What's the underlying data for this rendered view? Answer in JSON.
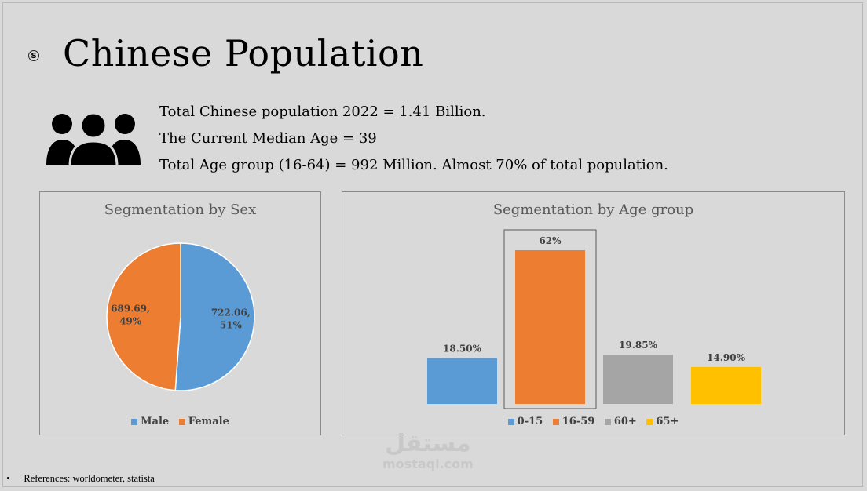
{
  "title": "Chinese Population",
  "stats": [
    "Total Chinese population 2022 = 1.41 Billion.",
    "The Current Median Age = 39",
    "Total Age group (16-64) = 992 Million. Almost 70% of total population."
  ],
  "references": "References: worldometer, statista",
  "watermark": {
    "arabic": "مستقل",
    "latin": "mostaql.com"
  },
  "colors": {
    "blue": "#5b9bd5",
    "orange": "#ed7d31",
    "gray": "#a5a5a5",
    "yellow": "#ffc000"
  },
  "chart_data": [
    {
      "type": "pie",
      "title": "Segmentation by Sex",
      "categories": [
        "Male",
        "Female"
      ],
      "values": [
        722.06,
        689.69
      ],
      "percent_labels": [
        "51%",
        "49%"
      ],
      "value_labels": [
        "722.06,",
        "689.69,"
      ],
      "colors": [
        "#5b9bd5",
        "#ed7d31"
      ],
      "legend": "bottom"
    },
    {
      "type": "bar",
      "title": "Segmentation by Age group",
      "categories": [
        "0-15",
        "16-59",
        "60+",
        "65+"
      ],
      "values": [
        18.5,
        62,
        19.85,
        14.9
      ],
      "data_labels": [
        "18.50%",
        "62%",
        "19.85%",
        "14.90%"
      ],
      "colors": [
        "#5b9bd5",
        "#ed7d31",
        "#a5a5a5",
        "#ffc000"
      ],
      "highlighted": "16-59",
      "legend": "bottom"
    }
  ]
}
